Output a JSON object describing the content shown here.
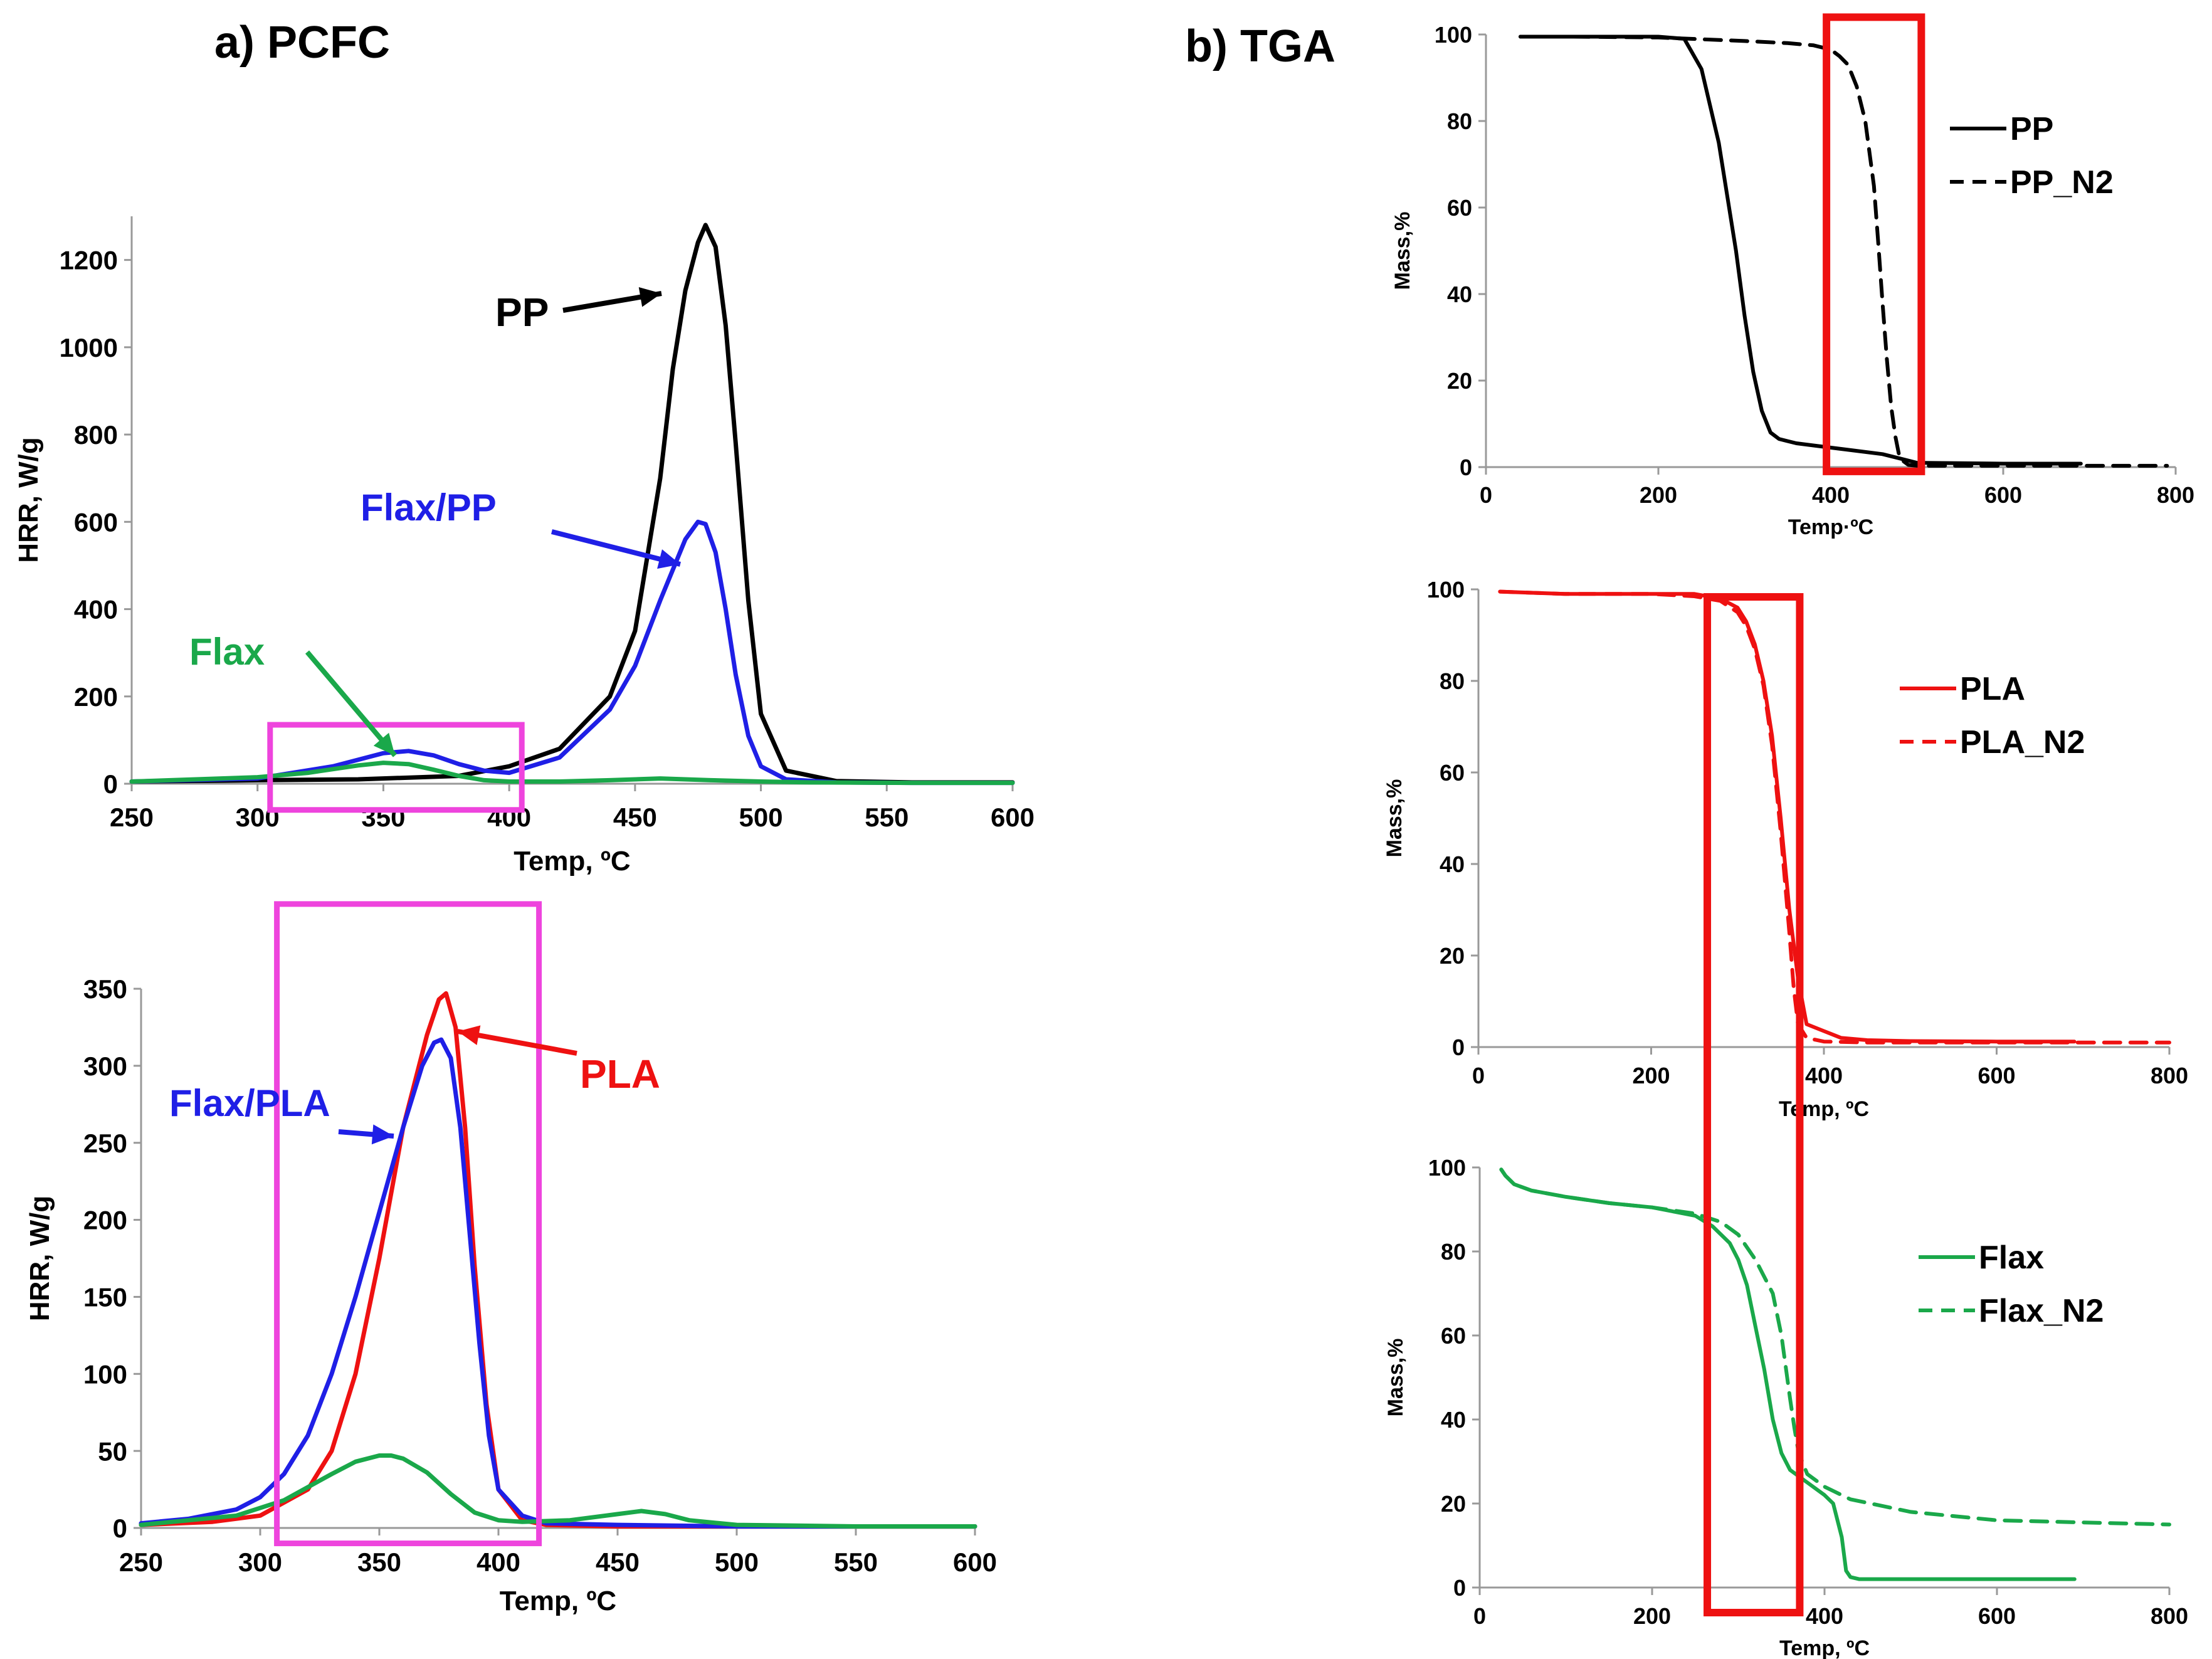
{
  "figure": {
    "panel_a_title": "a) PCFC",
    "panel_b_title": "b) TGA"
  },
  "colors": {
    "black": "#000000",
    "blue": "#1f1fe6",
    "green": "#1aa84a",
    "red": "#ee1111",
    "magenta": "#ee44dd",
    "box_red": "#ee1111"
  },
  "chart_data": [
    {
      "id": "pcfc-pp",
      "type": "line",
      "title": "",
      "xlabel": "Temp, ºC",
      "ylabel": "HRR, W/g",
      "xlim": [
        250,
        600
      ],
      "ylim": [
        0,
        1300
      ],
      "xticks": [
        250,
        300,
        350,
        400,
        450,
        500,
        550,
        600
      ],
      "yticks": [
        0,
        200,
        400,
        600,
        800,
        1000,
        1200
      ],
      "series": [
        {
          "name": "PP",
          "color": "#000000",
          "dash": false,
          "x": [
            250,
            300,
            340,
            380,
            400,
            420,
            440,
            450,
            460,
            465,
            470,
            475,
            478,
            482,
            486,
            490,
            495,
            500,
            510,
            530,
            560,
            600
          ],
          "y": [
            5,
            8,
            10,
            18,
            40,
            80,
            200,
            350,
            700,
            950,
            1130,
            1240,
            1280,
            1230,
            1050,
            780,
            420,
            160,
            30,
            6,
            3,
            3
          ]
        },
        {
          "name": "Flax/PP",
          "color": "#1f1fe6",
          "dash": false,
          "x": [
            250,
            300,
            330,
            350,
            360,
            370,
            380,
            390,
            400,
            420,
            440,
            450,
            460,
            470,
            475,
            478,
            482,
            486,
            490,
            495,
            500,
            510,
            530,
            560,
            600
          ],
          "y": [
            5,
            12,
            40,
            70,
            75,
            65,
            45,
            30,
            25,
            60,
            170,
            270,
            420,
            560,
            600,
            595,
            530,
            400,
            250,
            110,
            40,
            10,
            3,
            2,
            2
          ]
        },
        {
          "name": "Flax",
          "color": "#1aa84a",
          "dash": false,
          "x": [
            250,
            300,
            320,
            340,
            350,
            360,
            370,
            380,
            390,
            400,
            420,
            440,
            460,
            480,
            500,
            520,
            560,
            600
          ],
          "y": [
            5,
            15,
            25,
            42,
            48,
            45,
            32,
            18,
            8,
            5,
            5,
            8,
            12,
            8,
            5,
            3,
            2,
            2
          ]
        }
      ],
      "annotations": [
        {
          "text": "PP",
          "color": "#000000"
        },
        {
          "text": "Flax/PP",
          "color": "#1f1fe6"
        },
        {
          "text": "Flax",
          "color": "#1aa84a"
        }
      ],
      "highlight_box": {
        "color": "#ee44dd",
        "x_range": [
          305,
          405
        ],
        "y_range": [
          -60,
          135
        ]
      }
    },
    {
      "id": "pcfc-pla",
      "type": "line",
      "title": "",
      "xlabel": "Temp, ºC",
      "ylabel": "HRR, W/g",
      "xlim": [
        250,
        600
      ],
      "ylim": [
        0,
        350
      ],
      "xticks": [
        250,
        300,
        350,
        400,
        450,
        500,
        550,
        600
      ],
      "yticks": [
        0,
        50,
        100,
        150,
        200,
        250,
        300,
        350
      ],
      "series": [
        {
          "name": "PLA",
          "color": "#ee1111",
          "dash": false,
          "x": [
            250,
            280,
            300,
            320,
            330,
            340,
            350,
            360,
            370,
            375,
            378,
            382,
            386,
            390,
            395,
            400,
            410,
            420,
            450,
            500,
            600
          ],
          "y": [
            2,
            4,
            8,
            25,
            50,
            100,
            175,
            260,
            320,
            343,
            347,
            325,
            260,
            170,
            80,
            25,
            5,
            2,
            1,
            1,
            1
          ]
        },
        {
          "name": "Flax/PLA",
          "color": "#1f1fe6",
          "dash": false,
          "x": [
            250,
            270,
            290,
            300,
            310,
            320,
            330,
            340,
            350,
            360,
            368,
            373,
            376,
            380,
            384,
            388,
            392,
            396,
            400,
            410,
            420,
            450,
            500,
            600
          ],
          "y": [
            3,
            6,
            12,
            20,
            35,
            60,
            100,
            150,
            205,
            260,
            300,
            315,
            317,
            305,
            260,
            190,
            120,
            60,
            25,
            8,
            3,
            2,
            1,
            1
          ]
        },
        {
          "name": "Flax",
          "color": "#1aa84a",
          "dash": false,
          "x": [
            250,
            290,
            310,
            330,
            340,
            350,
            355,
            360,
            370,
            380,
            390,
            400,
            410,
            430,
            450,
            460,
            470,
            480,
            500,
            550,
            600
          ],
          "y": [
            2,
            8,
            18,
            35,
            43,
            47,
            47,
            45,
            36,
            22,
            10,
            5,
            4,
            5,
            9,
            11,
            9,
            5,
            2,
            1,
            1
          ]
        }
      ],
      "annotations": [
        {
          "text": "Flax/PLA",
          "color": "#1f1fe6"
        },
        {
          "text": "PLA",
          "color": "#ee1111"
        }
      ],
      "highlight_box": {
        "color": "#ee44dd",
        "x_range": [
          307,
          417
        ],
        "y_range": [
          -10,
          405
        ]
      }
    },
    {
      "id": "tga-pp",
      "type": "line",
      "title": "",
      "xlabel": "Temp·ºC",
      "ylabel": "Mass,%",
      "xlim": [
        0,
        800
      ],
      "ylim": [
        0,
        100
      ],
      "xticks": [
        0,
        200,
        400,
        600,
        800
      ],
      "yticks": [
        0,
        20,
        40,
        60,
        80,
        100
      ],
      "series": [
        {
          "name": "PP",
          "color": "#000000",
          "dash": false,
          "x": [
            40,
            100,
            200,
            230,
            250,
            270,
            290,
            300,
            310,
            320,
            330,
            340,
            350,
            360,
            380,
            420,
            460,
            480,
            500,
            600,
            690
          ],
          "y": [
            99.5,
            99.5,
            99.5,
            99,
            92,
            75,
            50,
            35,
            22,
            13,
            8,
            6.5,
            6,
            5.5,
            5,
            4,
            3,
            2,
            1,
            0.8,
            0.8
          ]
        },
        {
          "name": "PP_N2",
          "color": "#000000",
          "dash": true,
          "x": [
            40,
            100,
            200,
            300,
            350,
            380,
            400,
            410,
            420,
            430,
            440,
            450,
            455,
            460,
            465,
            470,
            475,
            480,
            490,
            500,
            600,
            790
          ],
          "y": [
            99.5,
            99.5,
            99.3,
            98.5,
            98,
            97.5,
            96.5,
            95,
            93,
            88,
            80,
            65,
            52,
            38,
            25,
            14,
            7,
            2,
            0.5,
            0.3,
            0.3,
            0.3
          ]
        }
      ],
      "legend": [
        "PP",
        "PP_N2"
      ],
      "highlight_box": {
        "color": "#ee1111",
        "x_range": [
          395,
          505
        ],
        "y_range": [
          -1,
          104
        ]
      }
    },
    {
      "id": "tga-pla",
      "type": "line",
      "title": "",
      "xlabel": "Temp, ºC",
      "ylabel": "Mass,%",
      "xlim": [
        0,
        800
      ],
      "ylim": [
        0,
        100
      ],
      "xticks": [
        0,
        200,
        400,
        600,
        800
      ],
      "yticks": [
        0,
        20,
        40,
        60,
        80,
        100
      ],
      "series": [
        {
          "name": "PLA",
          "color": "#ee1111",
          "dash": false,
          "x": [
            25,
            100,
            200,
            250,
            280,
            300,
            310,
            320,
            330,
            340,
            350,
            360,
            370,
            380,
            400,
            420,
            450,
            500,
            600,
            690
          ],
          "y": [
            99.5,
            99,
            99,
            99,
            98,
            96,
            93,
            88,
            80,
            68,
            50,
            30,
            15,
            5,
            3.5,
            2,
            1.5,
            1.3,
            1.2,
            1.2
          ]
        },
        {
          "name": "PLA_N2",
          "color": "#ee1111",
          "dash": true,
          "x": [
            25,
            100,
            200,
            250,
            280,
            300,
            310,
            320,
            330,
            340,
            350,
            360,
            365,
            370,
            380,
            400,
            450,
            500,
            600,
            800
          ],
          "y": [
            99.5,
            99,
            99,
            98.5,
            97.5,
            95,
            92,
            87,
            79,
            66,
            47,
            25,
            13,
            5,
            2,
            1.2,
            1,
            1,
            1,
            1
          ]
        }
      ],
      "legend": [
        "PLA",
        "PLA_N2"
      ],
      "highlight_box": {
        "color": "#ee1111",
        "x_range": [
          265,
          372
        ],
        "y_range": [
          -3,
          98
        ]
      }
    },
    {
      "id": "tga-flax",
      "type": "line",
      "title": "",
      "xlabel": "Temp, ºC",
      "ylabel": "Mass,%",
      "xlim": [
        0,
        800
      ],
      "ylim": [
        0,
        100
      ],
      "xticks": [
        0,
        200,
        400,
        600,
        800
      ],
      "yticks": [
        0,
        20,
        40,
        60,
        80,
        100
      ],
      "series": [
        {
          "name": "Flax",
          "color": "#1aa84a",
          "dash": false,
          "x": [
            25,
            30,
            40,
            60,
            100,
            150,
            200,
            250,
            270,
            290,
            300,
            310,
            320,
            330,
            340,
            350,
            360,
            380,
            400,
            410,
            420,
            425,
            430,
            440,
            500,
            600,
            690
          ],
          "y": [
            99.5,
            98,
            96,
            94.5,
            93,
            91.5,
            90.5,
            88.5,
            86,
            82,
            78,
            72,
            62,
            52,
            40,
            32,
            28,
            25,
            22,
            20,
            12,
            4,
            2.5,
            2,
            2,
            2,
            2
          ]
        },
        {
          "name": "Flax_N2",
          "color": "#1aa84a",
          "dash": true,
          "x": [
            25,
            30,
            40,
            60,
            100,
            150,
            200,
            250,
            280,
            300,
            320,
            340,
            350,
            360,
            365,
            370,
            380,
            400,
            430,
            500,
            600,
            700,
            800
          ],
          "y": [
            99.5,
            98,
            96,
            94.5,
            93,
            91.5,
            90.5,
            89,
            87,
            84,
            78,
            70,
            60,
            45,
            38,
            32,
            27,
            24,
            21,
            18,
            16,
            15.5,
            15
          ]
        }
      ],
      "legend": [
        "Flax",
        "Flax_N2"
      ]
    }
  ],
  "tga_shared_box": {
    "color": "#ee1111",
    "x_range": [
      265,
      372
    ]
  }
}
